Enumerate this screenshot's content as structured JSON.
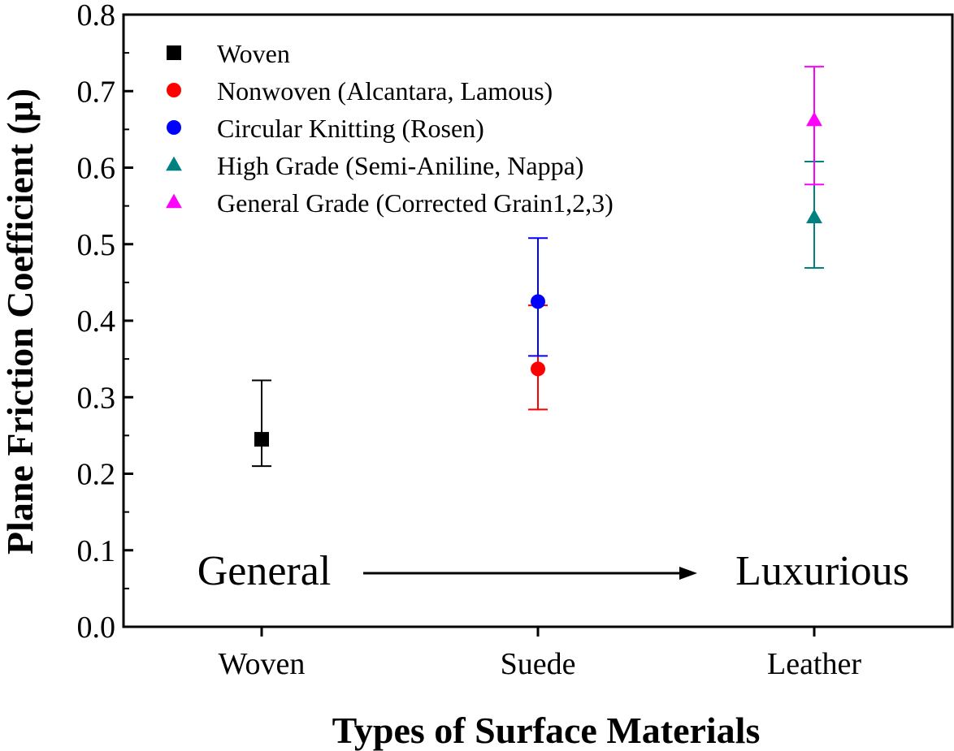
{
  "chart_data": {
    "type": "scatter",
    "xlabel": "Types of Surface Materials",
    "ylabel": "Plane Friction Coefficient (μ)",
    "ylim": [
      0.0,
      0.8
    ],
    "yticks": [
      "0.0",
      "0.1",
      "0.2",
      "0.3",
      "0.4",
      "0.5",
      "0.6",
      "0.7",
      "0.8"
    ],
    "categories": [
      "Woven",
      "Suede",
      "Leather"
    ],
    "grid": false,
    "legend_position": "top-left",
    "series": [
      {
        "name": "Woven",
        "marker": "square",
        "color": "#000000",
        "category": "Woven",
        "y": 0.245,
        "err_low": 0.21,
        "err_high": 0.322
      },
      {
        "name": "Nonwoven (Alcantara, Lamous)",
        "marker": "circle",
        "color": "#ff0000",
        "category": "Suede",
        "y": 0.337,
        "err_low": 0.284,
        "err_high": 0.42
      },
      {
        "name": "Circular Knitting (Rosen)",
        "marker": "circle",
        "color": "#0000ff",
        "category": "Suede",
        "y": 0.425,
        "err_low": 0.354,
        "err_high": 0.508
      },
      {
        "name": "High Grade (Semi-Aniline, Nappa)",
        "marker": "triangle",
        "color": "#008080",
        "category": "Leather",
        "y": 0.535,
        "err_low": 0.469,
        "err_high": 0.608
      },
      {
        "name": "General Grade (Corrected Grain1,2,3)",
        "marker": "triangle",
        "color": "#ff00ff",
        "category": "Leather",
        "y": 0.662,
        "err_low": 0.578,
        "err_high": 0.732
      }
    ],
    "annotations": {
      "left": "General",
      "right": "Luxurious"
    }
  }
}
